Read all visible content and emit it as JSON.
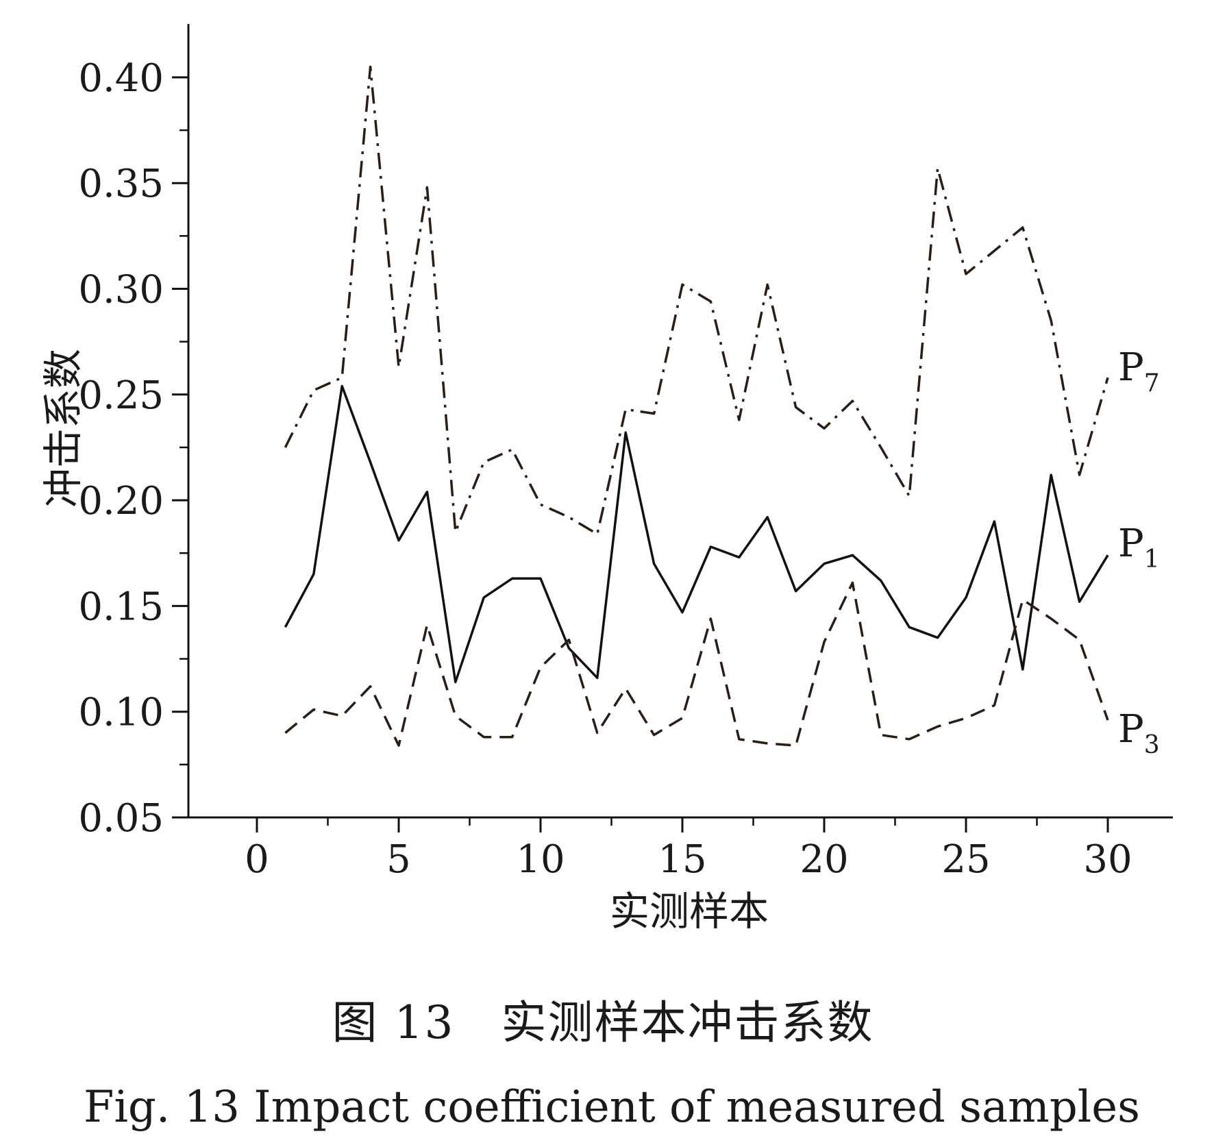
{
  "chart_data": {
    "type": "line",
    "xlabel": "实测样本",
    "ylabel": "冲击系数",
    "xlim": [
      -5,
      32
    ],
    "ylim": [
      0.05,
      0.425
    ],
    "xticks": [
      "0",
      "5",
      "10",
      "15",
      "20",
      "25",
      "30"
    ],
    "yticks": [
      "0.05",
      "0.10",
      "0.15",
      "0.20",
      "0.25",
      "0.30",
      "0.35",
      "0.40"
    ],
    "x": [
      1,
      2,
      3,
      4,
      5,
      6,
      7,
      8,
      9,
      10,
      11,
      12,
      13,
      14,
      15,
      16,
      17,
      18,
      19,
      20,
      21,
      22,
      23,
      24,
      25,
      26,
      27,
      28,
      29,
      30
    ],
    "series": [
      {
        "name": "P",
        "subscript": "7",
        "style": "dash-dot",
        "color": "#2b1c14",
        "values": [
          0.225,
          0.252,
          0.258,
          0.405,
          0.263,
          0.348,
          0.185,
          0.218,
          0.224,
          0.198,
          0.192,
          0.184,
          0.243,
          0.241,
          0.302,
          0.294,
          0.238,
          0.302,
          0.244,
          0.234,
          0.247,
          0.225,
          0.202,
          0.357,
          0.307,
          0.318,
          0.329,
          0.285,
          0.212,
          0.258
        ]
      },
      {
        "name": "P",
        "subscript": "1",
        "style": "solid",
        "color": "#111111",
        "values": [
          0.14,
          0.165,
          0.254,
          0.218,
          0.181,
          0.204,
          0.114,
          0.154,
          0.163,
          0.163,
          0.13,
          0.116,
          0.232,
          0.17,
          0.147,
          0.178,
          0.173,
          0.192,
          0.157,
          0.17,
          0.174,
          0.162,
          0.14,
          0.135,
          0.154,
          0.19,
          0.12,
          0.212,
          0.152,
          0.174
        ]
      },
      {
        "name": "P",
        "subscript": "3",
        "style": "dashed",
        "color": "#2b1c14",
        "values": [
          0.09,
          0.101,
          0.098,
          0.112,
          0.084,
          0.141,
          0.098,
          0.088,
          0.088,
          0.121,
          0.134,
          0.09,
          0.111,
          0.089,
          0.097,
          0.144,
          0.087,
          0.085,
          0.084,
          0.133,
          0.161,
          0.089,
          0.087,
          0.093,
          0.097,
          0.103,
          0.153,
          0.144,
          0.134,
          0.096
        ]
      }
    ]
  },
  "caption": {
    "cn": "图 13　实测样本冲击系数",
    "en": "Fig. 13  Impact coefficient of measured samples"
  }
}
